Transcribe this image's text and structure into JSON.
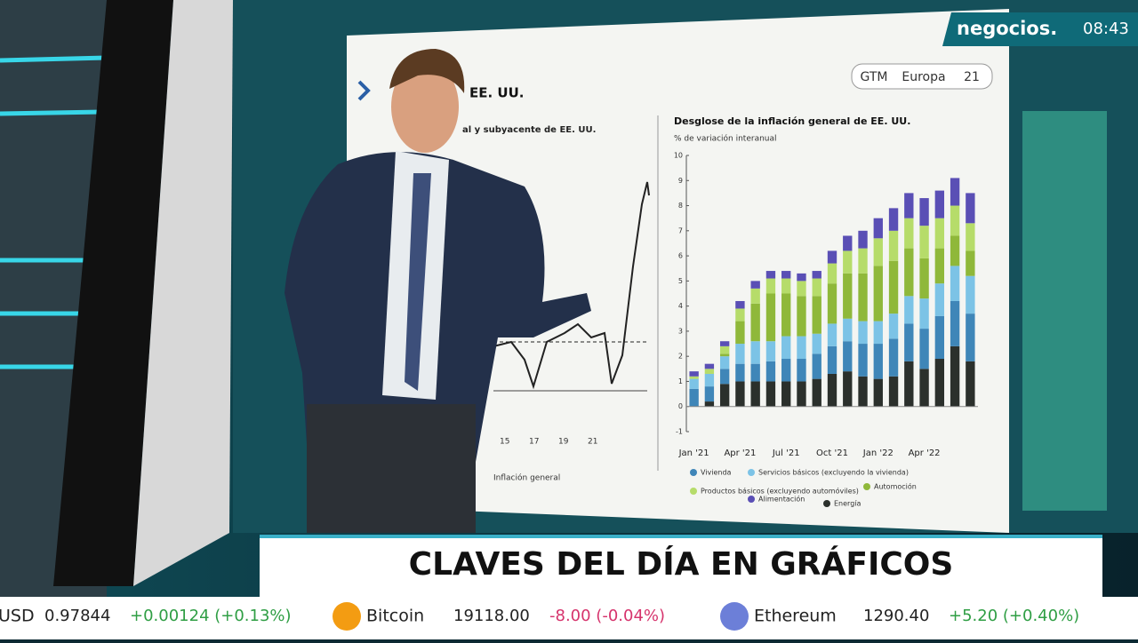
{
  "header": {
    "logo": "negocios.",
    "time": "08:43"
  },
  "screen": {
    "tabs": [
      "GTM",
      "Europa",
      "21"
    ],
    "left_title": "EE. UU.",
    "left_subtitle": "al y subyacente de EE. UU.",
    "left_xticks": [
      "15",
      "17",
      "19",
      "21"
    ],
    "left_legend": "Inflación general"
  },
  "chart_data": {
    "type": "bar",
    "stacked": true,
    "title": "Desglose de la inflación general de EE. UU.",
    "subtitle": "% de variación interanual",
    "categories": [
      "Jan '21",
      null,
      null,
      "Apr '21",
      null,
      null,
      "Jul '21",
      null,
      null,
      "Oct '21",
      null,
      null,
      "Jan '22",
      null,
      null,
      "Apr '22",
      null,
      null,
      null
    ],
    "series": [
      {
        "name": "Energía",
        "color": "#2b302c",
        "values": [
          0.0,
          0.2,
          0.9,
          1.0,
          1.0,
          1.0,
          1.0,
          1.0,
          1.1,
          1.3,
          1.4,
          1.2,
          1.1,
          1.2,
          1.8,
          1.5,
          1.9,
          2.4,
          1.8
        ]
      },
      {
        "name": "Vivienda",
        "color": "#3f86b8",
        "values": [
          0.7,
          0.6,
          0.6,
          0.7,
          0.7,
          0.8,
          0.9,
          0.9,
          1.0,
          1.1,
          1.2,
          1.3,
          1.4,
          1.5,
          1.5,
          1.6,
          1.7,
          1.8,
          1.9
        ]
      },
      {
        "name": "Servicios básicos (excluyendo la vivienda)",
        "color": "#7cc3e6",
        "values": [
          0.4,
          0.5,
          0.5,
          0.8,
          0.9,
          0.8,
          0.9,
          0.9,
          0.8,
          0.9,
          0.9,
          0.9,
          0.9,
          1.0,
          1.1,
          1.2,
          1.3,
          1.4,
          1.5
        ]
      },
      {
        "name": "Automoción",
        "color": "#8fb83a",
        "values": [
          0.0,
          0.0,
          0.1,
          0.9,
          1.5,
          1.9,
          1.7,
          1.6,
          1.5,
          1.6,
          1.8,
          1.9,
          2.2,
          2.1,
          1.9,
          1.6,
          1.4,
          1.2,
          1.0
        ]
      },
      {
        "name": "Productos básicos (excluyendo automóviles)",
        "color": "#b6dc6a",
        "values": [
          0.1,
          0.2,
          0.3,
          0.5,
          0.6,
          0.6,
          0.6,
          0.6,
          0.7,
          0.8,
          0.9,
          1.0,
          1.1,
          1.2,
          1.2,
          1.3,
          1.2,
          1.2,
          1.1
        ]
      },
      {
        "name": "Alimentación",
        "color": "#5a4fb5",
        "values": [
          0.2,
          0.2,
          0.2,
          0.3,
          0.3,
          0.3,
          0.3,
          0.3,
          0.3,
          0.5,
          0.6,
          0.7,
          0.8,
          0.9,
          1.0,
          1.1,
          1.1,
          1.1,
          1.2
        ]
      }
    ],
    "ylim": [
      -1,
      10
    ],
    "yticks": [
      -1,
      0,
      1,
      2,
      3,
      4,
      5,
      6,
      7,
      8,
      9,
      10
    ]
  },
  "banner": {
    "title": "CLAVES DEL DÍA EN GRÁFICOS"
  },
  "ticker": [
    {
      "name": "USD",
      "price": "0.97844",
      "change": "+0.00124 (+0.13%)",
      "color": "#2f9e44"
    },
    {
      "name": "Bitcoin",
      "price": "19118.00",
      "change": "-8.00 (-0.04%)",
      "color": "#d6336c"
    },
    {
      "name": "Ethereum",
      "price": "1290.40",
      "change": "+5.20 (+0.40%)",
      "color": "#2f9e44"
    }
  ]
}
